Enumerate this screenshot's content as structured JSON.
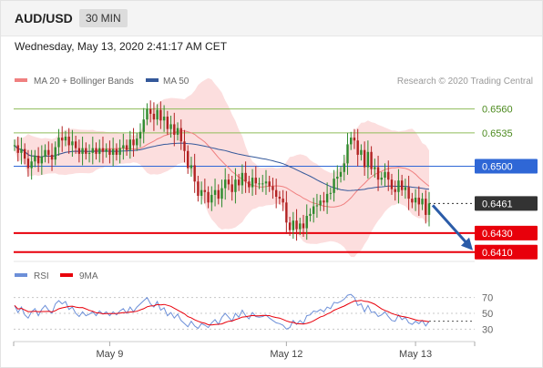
{
  "header": {
    "symbol": "AUD/USD",
    "timeframe": "30 MIN"
  },
  "datetime": "Wednesday, May 13, 2020 2:41:17 AM CET",
  "credit": "Research © 2020 Trading Central",
  "colors": {
    "support": "#e8000b",
    "pivot": "#2f67d6",
    "resistance": "#8fbc5a",
    "last": "#333333",
    "arrow": "#2b5ca8",
    "ma20": "#f08080",
    "ma50": "#34589a",
    "bollinger": "#fbd3d3",
    "candle_up": "#2e8b2e",
    "candle_down": "#b22222",
    "rsi": "#6c8fd8",
    "rsi_ma": "#e8000b"
  },
  "chart_data": [
    {
      "type": "candlestick",
      "title": "AUD/USD 30 MIN",
      "legend": [
        {
          "name": "MA 20 + Bollinger Bands",
          "color": "#f08080"
        },
        {
          "name": "MA 50",
          "color": "#34589a"
        }
      ],
      "x_ticks": [
        "May 9",
        "May 12",
        "May 13"
      ],
      "ylim": [
        0.6405,
        0.6574
      ],
      "levels": [
        {
          "value": 0.656,
          "label": "0.6560",
          "kind": "resistance"
        },
        {
          "value": 0.6535,
          "label": "0.6535",
          "kind": "resistance"
        },
        {
          "value": 0.65,
          "label": "0.6500",
          "kind": "pivot"
        },
        {
          "value": 0.6461,
          "label": "0.6461",
          "kind": "last"
        },
        {
          "value": 0.643,
          "label": "0.6430",
          "kind": "support"
        },
        {
          "value": 0.641,
          "label": "0.6410",
          "kind": "support"
        }
      ],
      "close": [
        0.6522,
        0.6514,
        0.6518,
        0.6508,
        0.6498,
        0.6505,
        0.6511,
        0.6503,
        0.651,
        0.6517,
        0.6512,
        0.6507,
        0.652,
        0.653,
        0.6527,
        0.6531,
        0.6522,
        0.6526,
        0.6519,
        0.6513,
        0.6519,
        0.6513,
        0.6514,
        0.6519,
        0.6513,
        0.6519,
        0.6515,
        0.6518,
        0.6512,
        0.6518,
        0.6512,
        0.6519,
        0.6522,
        0.6517,
        0.6528,
        0.6522,
        0.6529,
        0.6536,
        0.6549,
        0.656,
        0.6555,
        0.6549,
        0.6559,
        0.6548,
        0.6552,
        0.6539,
        0.6544,
        0.6533,
        0.654,
        0.6526,
        0.6516,
        0.6498,
        0.6501,
        0.6484,
        0.6469,
        0.6475,
        0.6473,
        0.6462,
        0.647,
        0.6475,
        0.6466,
        0.6477,
        0.6486,
        0.6481,
        0.6473,
        0.6486,
        0.648,
        0.6493,
        0.6484,
        0.6478,
        0.6488,
        0.6482,
        0.6482,
        0.6482,
        0.6484,
        0.6479,
        0.6475,
        0.6468,
        0.6466,
        0.6462,
        0.6441,
        0.6433,
        0.6443,
        0.6434,
        0.644,
        0.6435,
        0.6448,
        0.645,
        0.6458,
        0.6459,
        0.6464,
        0.6462,
        0.6471,
        0.6472,
        0.6487,
        0.6489,
        0.6494,
        0.6503,
        0.6523,
        0.653,
        0.6527,
        0.6512,
        0.6517,
        0.6499,
        0.6515,
        0.6497,
        0.6499,
        0.6486,
        0.6488,
        0.6494,
        0.6486,
        0.6476,
        0.6473,
        0.6485,
        0.6475,
        0.6478,
        0.6466,
        0.6462,
        0.6467,
        0.646,
        0.6466,
        0.6449,
        0.6461
      ],
      "projection": {
        "from": 0.6461,
        "to": 0.641,
        "direction": "down"
      }
    },
    {
      "type": "line",
      "title": "RSI",
      "legend": [
        {
          "name": "RSI",
          "color": "#6c8fd8"
        },
        {
          "name": "9MA",
          "color": "#e8000b"
        }
      ],
      "y_ticks": [
        70,
        50,
        30
      ],
      "ylim": [
        20,
        80
      ],
      "series": [
        {
          "name": "RSI",
          "values": [
            60,
            51,
            58,
            48,
            44,
            52,
            56,
            47,
            55,
            60,
            54,
            50,
            62,
            66,
            62,
            65,
            55,
            58,
            50,
            46,
            52,
            47,
            49,
            52,
            47,
            53,
            49,
            52,
            47,
            52,
            48,
            53,
            56,
            50,
            58,
            52,
            58,
            62,
            66,
            70,
            62,
            58,
            65,
            54,
            57,
            47,
            51,
            44,
            49,
            41,
            37,
            33,
            40,
            34,
            31,
            37,
            35,
            32,
            38,
            42,
            36,
            45,
            50,
            45,
            40,
            50,
            45,
            54,
            47,
            43,
            51,
            46,
            45,
            46,
            48,
            44,
            41,
            38,
            37,
            35,
            30,
            32,
            41,
            36,
            41,
            37,
            47,
            48,
            53,
            52,
            55,
            52,
            58,
            56,
            64,
            63,
            65,
            68,
            73,
            74,
            70,
            60,
            62,
            52,
            60,
            51,
            52,
            46,
            48,
            52,
            46,
            41,
            40,
            48,
            42,
            45,
            38,
            36,
            40,
            37,
            41,
            34,
            40
          ]
        },
        {
          "name": "9MA",
          "values": []
        }
      ]
    }
  ]
}
